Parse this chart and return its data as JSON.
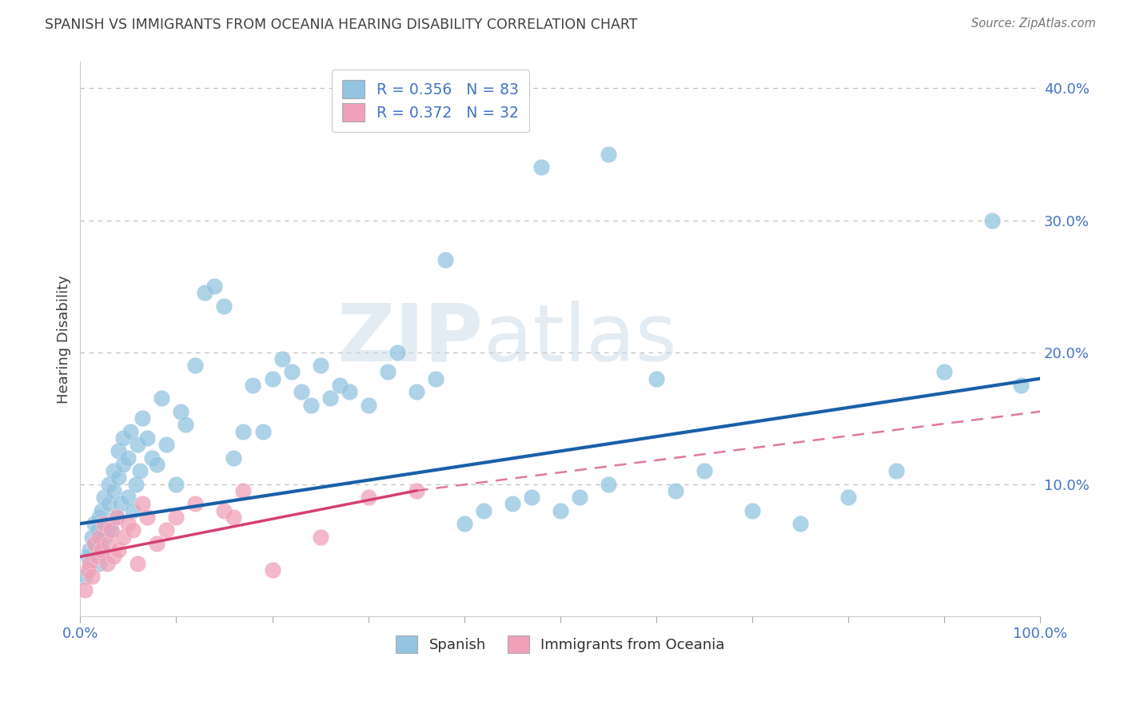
{
  "title": "SPANISH VS IMMIGRANTS FROM OCEANIA HEARING DISABILITY CORRELATION CHART",
  "source": "Source: ZipAtlas.com",
  "ylabel": "Hearing Disability",
  "xlim": [
    0,
    100
  ],
  "ylim": [
    0,
    42
  ],
  "yticks": [
    0,
    10,
    20,
    30,
    40
  ],
  "ytick_labels": [
    "",
    "10.0%",
    "20.0%",
    "30.0%",
    "40.0%"
  ],
  "legend_r_entries": [
    {
      "label": "R = 0.356   N = 83",
      "color": "#93c4e0"
    },
    {
      "label": "R = 0.372   N = 32",
      "color": "#f0a0b8"
    }
  ],
  "legend_series": [
    "Spanish",
    "Immigrants from Oceania"
  ],
  "blue_dot_color": "#93c4e0",
  "pink_dot_color": "#f0a0b8",
  "blue_line_color": "#1a5fa8",
  "pink_line_color": "#d44070",
  "watermark_zip": "ZIP",
  "watermark_atlas": "atlas",
  "background_color": "#ffffff",
  "grid_color": "#bbbbbb",
  "title_color": "#404040",
  "tick_color": "#4472c4",
  "spanish_x": [
    0.5,
    0.8,
    1.0,
    1.2,
    1.5,
    1.5,
    1.8,
    2.0,
    2.0,
    2.2,
    2.2,
    2.5,
    2.5,
    2.8,
    3.0,
    3.0,
    3.2,
    3.5,
    3.5,
    3.8,
    4.0,
    4.0,
    4.2,
    4.5,
    4.5,
    5.0,
    5.0,
    5.2,
    5.5,
    5.8,
    6.0,
    6.2,
    6.5,
    7.0,
    7.5,
    8.0,
    8.5,
    9.0,
    10.0,
    10.5,
    11.0,
    12.0,
    13.0,
    14.0,
    15.0,
    16.0,
    17.0,
    18.0,
    19.0,
    20.0,
    21.0,
    22.0,
    23.0,
    24.0,
    25.0,
    26.0,
    27.0,
    28.0,
    30.0,
    32.0,
    33.0,
    35.0,
    37.0,
    40.0,
    42.0,
    45.0,
    47.0,
    50.0,
    52.0,
    55.0,
    60.0,
    62.0,
    65.0,
    70.0,
    75.0,
    80.0,
    85.0,
    90.0,
    95.0,
    98.0,
    55.0,
    48.0,
    38.0
  ],
  "spanish_y": [
    3.0,
    4.5,
    5.0,
    6.0,
    5.5,
    7.0,
    6.5,
    4.0,
    7.5,
    5.0,
    8.0,
    6.0,
    9.0,
    7.0,
    8.5,
    10.0,
    6.5,
    9.5,
    11.0,
    7.5,
    10.5,
    12.5,
    8.5,
    11.5,
    13.5,
    9.0,
    12.0,
    14.0,
    8.0,
    10.0,
    13.0,
    11.0,
    15.0,
    13.5,
    12.0,
    11.5,
    16.5,
    13.0,
    10.0,
    15.5,
    14.5,
    19.0,
    24.5,
    25.0,
    23.5,
    12.0,
    14.0,
    17.5,
    14.0,
    18.0,
    19.5,
    18.5,
    17.0,
    16.0,
    19.0,
    16.5,
    17.5,
    17.0,
    16.0,
    18.5,
    20.0,
    17.0,
    18.0,
    7.0,
    8.0,
    8.5,
    9.0,
    8.0,
    9.0,
    10.0,
    18.0,
    9.5,
    11.0,
    8.0,
    7.0,
    9.0,
    11.0,
    18.5,
    30.0,
    17.5,
    35.0,
    34.0,
    27.0
  ],
  "oceania_x": [
    0.5,
    0.8,
    1.0,
    1.2,
    1.5,
    1.8,
    2.0,
    2.2,
    2.5,
    2.8,
    3.0,
    3.2,
    3.5,
    3.8,
    4.0,
    4.5,
    5.0,
    5.5,
    6.0,
    6.5,
    7.0,
    8.0,
    9.0,
    10.0,
    12.0,
    15.0,
    16.0,
    17.0,
    20.0,
    25.0,
    30.0,
    35.0
  ],
  "oceania_y": [
    2.0,
    3.5,
    4.0,
    3.0,
    5.5,
    4.5,
    6.0,
    5.0,
    7.0,
    4.0,
    5.5,
    6.5,
    4.5,
    7.5,
    5.0,
    6.0,
    7.0,
    6.5,
    4.0,
    8.5,
    7.5,
    5.5,
    6.5,
    7.5,
    8.5,
    8.0,
    7.5,
    9.5,
    3.5,
    6.0,
    9.0,
    9.5
  ],
  "blue_reg_x0": 0,
  "blue_reg_x1": 100,
  "blue_reg_y0": 7.0,
  "blue_reg_y1": 18.0,
  "pink_reg_x0": 0,
  "pink_reg_x1": 35,
  "pink_reg_y0": 4.5,
  "pink_reg_y1": 9.5,
  "pink_dash_x0": 35,
  "pink_dash_x1": 100,
  "pink_dash_y0": 9.5,
  "pink_dash_y1": 15.5
}
